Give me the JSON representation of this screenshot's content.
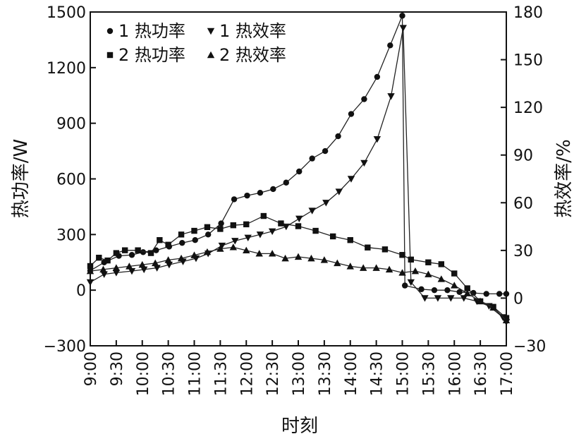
{
  "chart_data": {
    "type": "line",
    "xlabel": "时刻",
    "ylabel_left": "热功率/W",
    "ylabel_right": "热效率/%",
    "x_ticks": [
      "9:00",
      "9:30",
      "10:00",
      "10:30",
      "11:00",
      "11:30",
      "12:00",
      "12:30",
      "13:00",
      "13:30",
      "14:00",
      "14:30",
      "15:00",
      "15:30",
      "16:00",
      "16:30",
      "17:00"
    ],
    "xlim": [
      "9:00",
      "17:00"
    ],
    "y_left": {
      "ticks": [
        -300,
        0,
        300,
        600,
        900,
        1200,
        1500
      ],
      "ylim": [
        -300,
        1500
      ]
    },
    "y_right": {
      "ticks": [
        -30,
        0,
        30,
        60,
        90,
        120,
        150,
        180
      ],
      "ylim": [
        -30,
        180
      ]
    },
    "grid": false,
    "legend": {
      "placement": "top-left",
      "columns": 2
    },
    "series": [
      {
        "name": "1 热功率",
        "axis": "left",
        "marker": "circle",
        "x": [
          "9:00",
          "9:16",
          "9:33",
          "9:48",
          "10:01",
          "10:16",
          "10:31",
          "10:46",
          "11:01",
          "11:16",
          "11:31",
          "11:46",
          "12:01",
          "12:16",
          "12:31",
          "12:46",
          "13:01",
          "13:16",
          "13:31",
          "13:46",
          "14:01",
          "14:16",
          "14:31",
          "14:46",
          "15:00",
          "15:03",
          "15:22",
          "15:37",
          "15:52",
          "16:06",
          "16:22",
          "16:37",
          "16:52",
          "17:00"
        ],
        "values": [
          105,
          150,
          185,
          190,
          205,
          215,
          235,
          255,
          270,
          300,
          360,
          490,
          510,
          525,
          545,
          580,
          640,
          710,
          750,
          830,
          950,
          1030,
          1150,
          1320,
          1480,
          25,
          5,
          0,
          0,
          -10,
          -15,
          -20,
          -20,
          -20
        ]
      },
      {
        "name": "1 热效率",
        "axis": "right",
        "marker": "triangle-down",
        "x": [
          "9:00",
          "9:16",
          "9:30",
          "9:48",
          "10:02",
          "10:17",
          "10:31",
          "10:47",
          "11:02",
          "11:16",
          "11:32",
          "11:47",
          "12:02",
          "12:16",
          "12:30",
          "12:46",
          "13:01",
          "13:16",
          "13:32",
          "13:47",
          "14:01",
          "14:16",
          "14:31",
          "14:47",
          "15:01",
          "15:10",
          "15:26",
          "15:41",
          "15:56",
          "16:11",
          "16:26",
          "16:40",
          "16:56",
          "17:00"
        ],
        "values": [
          10,
          15,
          16,
          17,
          18,
          19,
          21,
          23,
          25,
          28,
          33,
          36,
          38,
          40,
          42,
          45,
          50,
          55,
          60,
          67,
          75,
          85,
          100,
          127,
          170,
          10,
          0,
          0,
          0,
          0,
          -2,
          -5,
          -12,
          -15
        ]
      },
      {
        "name": "2 热功率",
        "axis": "left",
        "marker": "square",
        "x": [
          "9:00",
          "9:10",
          "9:20",
          "9:30",
          "9:40",
          "9:55",
          "10:10",
          "10:20",
          "10:30",
          "10:45",
          "11:00",
          "11:15",
          "11:30",
          "11:45",
          "12:00",
          "12:20",
          "12:40",
          "13:00",
          "13:20",
          "13:40",
          "14:00",
          "14:20",
          "14:40",
          "15:00",
          "15:10",
          "15:30",
          "15:45",
          "16:00",
          "16:15",
          "16:30",
          "16:45",
          "17:00"
        ],
        "values": [
          130,
          175,
          160,
          200,
          215,
          215,
          200,
          270,
          245,
          300,
          320,
          340,
          330,
          350,
          355,
          400,
          360,
          345,
          320,
          290,
          270,
          230,
          220,
          190,
          165,
          150,
          140,
          90,
          10,
          -60,
          -90,
          -150
        ]
      },
      {
        "name": "2 热效率",
        "axis": "right",
        "marker": "triangle-up",
        "x": [
          "9:00",
          "9:15",
          "9:30",
          "9:45",
          "10:00",
          "10:15",
          "10:30",
          "10:45",
          "11:00",
          "11:15",
          "11:30",
          "11:45",
          "12:00",
          "12:15",
          "12:30",
          "12:45",
          "13:00",
          "13:15",
          "13:30",
          "13:45",
          "14:00",
          "14:15",
          "14:30",
          "14:45",
          "15:00",
          "15:15",
          "15:30",
          "15:45",
          "16:00",
          "16:15",
          "16:30",
          "16:45",
          "17:00"
        ],
        "values": [
          17,
          18,
          19,
          20,
          21,
          22,
          24,
          25,
          27,
          29,
          31,
          32,
          30,
          28,
          28,
          25,
          26,
          25,
          24,
          22,
          20,
          19,
          19,
          18,
          16,
          17,
          15,
          12,
          8,
          3,
          -2,
          -6,
          -14
        ]
      }
    ]
  }
}
